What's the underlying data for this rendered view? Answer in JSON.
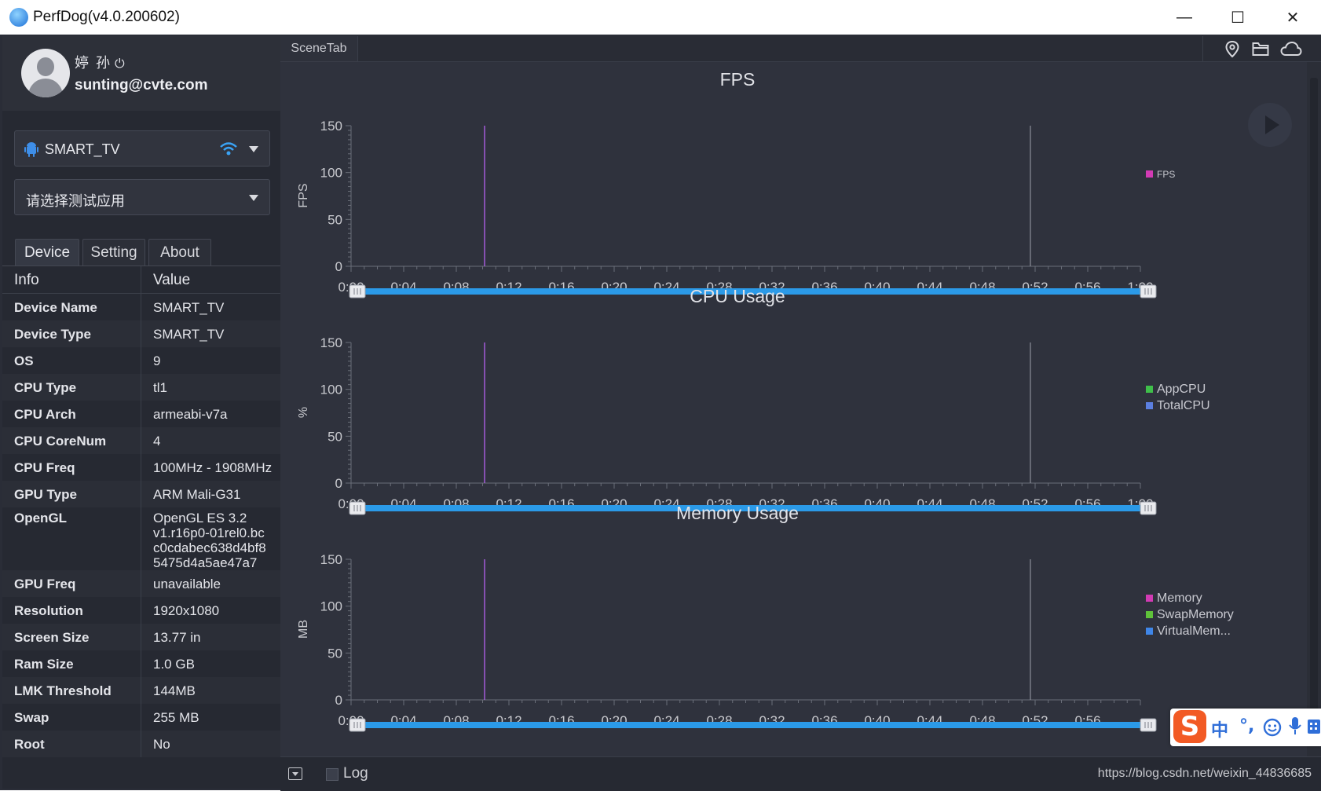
{
  "window": {
    "title": "PerfDog(v4.0.200602)",
    "minimize": "—",
    "maximize": "☐",
    "close": "✕"
  },
  "user": {
    "name": "婷 孙",
    "power": "⏻",
    "email": "sunting@cvte.com"
  },
  "device_select": {
    "value": "SMART_TV"
  },
  "app_select": {
    "placeholder": "请选择测试应用"
  },
  "tabs": [
    {
      "label": "Device"
    },
    {
      "label": "Setting"
    },
    {
      "label": "About"
    }
  ],
  "table": {
    "headers": {
      "info": "Info",
      "value": "Value"
    },
    "rows": [
      {
        "k": "Device Name",
        "v": "SMART_TV"
      },
      {
        "k": "Device Type",
        "v": "SMART_TV"
      },
      {
        "k": "OS",
        "v": "9"
      },
      {
        "k": "CPU Type",
        "v": "tl1"
      },
      {
        "k": "CPU Arch",
        "v": "armeabi-v7a"
      },
      {
        "k": "CPU CoreNum",
        "v": "4"
      },
      {
        "k": "CPU Freq",
        "v": "100MHz - 1908MHz"
      },
      {
        "k": "GPU Type",
        "v": "ARM Mali-G31"
      },
      {
        "k": "OpenGL",
        "v": "OpenGL ES 3.2\nv1.r16p0-01rel0.bc\nc0cdabec638d4bf8\n5475d4a5ae47a7"
      },
      {
        "k": "GPU Freq",
        "v": "unavailable"
      },
      {
        "k": "Resolution",
        "v": "1920x1080"
      },
      {
        "k": "Screen Size",
        "v": "13.77 in"
      },
      {
        "k": "Ram Size",
        "v": "1.0 GB"
      },
      {
        "k": "LMK Threshold",
        "v": "144MB"
      },
      {
        "k": "Swap",
        "v": "255 MB"
      },
      {
        "k": "Root",
        "v": "No"
      }
    ]
  },
  "scene_tab": "SceneTab",
  "top_icons": [
    "location-pin-icon",
    "folder-icon",
    "cloud-icon"
  ],
  "colors": {
    "accent": "#2b9ae8",
    "markers": "#a35ad8"
  },
  "charts": [
    {
      "title": "FPS",
      "ylabel": "FPS",
      "y_ticks": [
        "150",
        "100",
        "50",
        "0"
      ],
      "legend": [
        {
          "name": "FPS",
          "color": "#d23bb4",
          "small": true
        }
      ],
      "x_ticks": [
        "0:00",
        "0:04",
        "0:08",
        "0:12",
        "0:16",
        "0:20",
        "0:24",
        "0:28",
        "0:32",
        "0:36",
        "0:40",
        "0:44",
        "0:48",
        "0:52",
        "0:56",
        "1:00"
      ]
    },
    {
      "title": "CPU Usage",
      "ylabel": "%",
      "y_ticks": [
        "150",
        "100",
        "50",
        "0"
      ],
      "legend": [
        {
          "name": "AppCPU",
          "color": "#3fbf4a"
        },
        {
          "name": "TotalCPU",
          "color": "#5b7fe0"
        }
      ],
      "x_ticks": [
        "0:00",
        "0:04",
        "0:08",
        "0:12",
        "0:16",
        "0:20",
        "0:24",
        "0:28",
        "0:32",
        "0:36",
        "0:40",
        "0:44",
        "0:48",
        "0:52",
        "0:56",
        "1:00"
      ]
    },
    {
      "title": "Memory Usage",
      "ylabel": "MB",
      "y_ticks": [
        "150",
        "100",
        "50",
        "0"
      ],
      "legend": [
        {
          "name": "Memory",
          "color": "#d23bb4"
        },
        {
          "name": "SwapMemory",
          "color": "#5fc23a"
        },
        {
          "name": "VirtualMem...",
          "color": "#3f86e8"
        }
      ],
      "x_ticks": [
        "0:00",
        "0:04",
        "0:08",
        "0:12",
        "0:16",
        "0:20",
        "0:24",
        "0:28",
        "0:32",
        "0:36",
        "0:40",
        "0:44",
        "0:48",
        "0:52",
        "0:56"
      ]
    }
  ],
  "bottom": {
    "log_label": "Log",
    "url": "https://blog.csdn.net/weixin_44836685"
  },
  "ime": {
    "logo": "S",
    "mode": "中",
    "punct": "°,"
  }
}
